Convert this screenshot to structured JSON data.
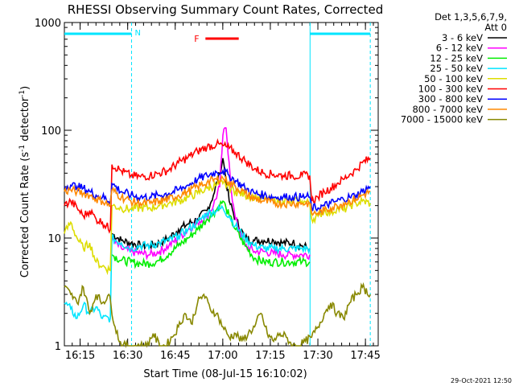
{
  "chart_data": {
    "type": "line",
    "title": "RHESSI Observing Summary Count Rates, Corrected",
    "xlabel": "Start Time (08-Jul-15 16:10:02)",
    "ylabel_main": "Corrected Count Rate (s",
    "ylabel_sup1": "-1",
    "ylabel_mid": " detector",
    "ylabel_sup2": "-1",
    "ylabel_end": ")",
    "yscale": "log",
    "ylim": [
      1,
      1000
    ],
    "xlim_minutes": [
      0,
      99
    ],
    "y_ticks": [
      {
        "value": 1,
        "label": "1"
      },
      {
        "value": 10,
        "label": "10"
      },
      {
        "value": 100,
        "label": "100"
      },
      {
        "value": 1000,
        "label": "1000"
      }
    ],
    "x_ticks": [
      {
        "minute": 4.97,
        "label": "16:15"
      },
      {
        "minute": 19.97,
        "label": "16:30"
      },
      {
        "minute": 34.97,
        "label": "16:45"
      },
      {
        "minute": 49.97,
        "label": "17:00"
      },
      {
        "minute": 64.97,
        "label": "17:15"
      },
      {
        "minute": 79.97,
        "label": "17:30"
      },
      {
        "minute": 94.97,
        "label": "17:45"
      }
    ],
    "legend_header": [
      "Det 1,3,5,6,7,9,",
      "Att 0"
    ],
    "legend_position": "right",
    "timestamp": "29-Oct-2021 12:50",
    "annotations": [
      {
        "label": "N",
        "color": "#00e5ff",
        "start_minute": 0,
        "end_minute": 21.2
      },
      {
        "label": "F",
        "color": "#ff0000",
        "start_minute": 44.5,
        "end_minute": 55.0
      }
    ],
    "night_markers_minutes": [
      21.2,
      77.5,
      96.5
    ],
    "series": [
      {
        "name": "3 - 6 keV",
        "color": "#000000",
        "x": [
          0,
          3,
          6,
          9,
          12,
          14.5,
          15,
          18,
          21,
          24,
          27,
          30,
          33,
          36,
          39,
          42,
          45,
          47,
          49,
          50,
          51,
          52,
          54,
          57,
          60,
          63,
          66,
          69,
          72,
          75,
          77.4
        ],
        "y": [
          null,
          null,
          null,
          null,
          null,
          null,
          11,
          9.5,
          9,
          8.5,
          8.5,
          9,
          10,
          12,
          13.5,
          15,
          18,
          25,
          40,
          55,
          35,
          22,
          15,
          10,
          9.5,
          9.5,
          9.5,
          9,
          9,
          8.5,
          8
        ]
      },
      {
        "name": "6 - 12 keV",
        "color": "#ff00ff",
        "x": [
          0,
          3,
          6,
          9,
          12,
          14.5,
          15,
          18,
          21,
          24,
          27,
          30,
          33,
          36,
          39,
          42,
          45,
          47,
          49,
          50,
          51,
          52,
          53,
          54,
          57,
          60,
          63,
          66,
          69,
          72,
          75,
          77.4
        ],
        "y": [
          null,
          null,
          null,
          null,
          null,
          null,
          9.5,
          8,
          7.5,
          7.2,
          7,
          7.5,
          8.5,
          10,
          12,
          14,
          16,
          20,
          30,
          90,
          105,
          50,
          22,
          15,
          8.5,
          7.5,
          7.5,
          7.2,
          7,
          7,
          7,
          7
        ]
      },
      {
        "name": "12 - 25 keV",
        "color": "#00ee00",
        "x": [
          0,
          3,
          6,
          9,
          12,
          14.5,
          15,
          18,
          21,
          24,
          27,
          30,
          33,
          36,
          39,
          42,
          45,
          47,
          49,
          50,
          51,
          52,
          54,
          57,
          60,
          63,
          66,
          69,
          72,
          75,
          77.4
        ],
        "y": [
          null,
          null,
          null,
          null,
          null,
          null,
          7,
          6.2,
          6,
          5.8,
          5.8,
          6.2,
          7.2,
          8.5,
          10,
          12,
          15,
          17,
          20,
          22,
          19,
          16,
          12,
          8.5,
          6.5,
          6,
          6,
          6,
          6,
          6,
          6
        ]
      },
      {
        "name": "25 - 50 keV",
        "color": "#00e5ff",
        "x": [
          0,
          2,
          4,
          6,
          8,
          10,
          12,
          14.5,
          15,
          18,
          21,
          24,
          27,
          30,
          33,
          36,
          39,
          42,
          45,
          48,
          50,
          52,
          54,
          57,
          60,
          63,
          66,
          69,
          72,
          75,
          77.4,
          78,
          82,
          86,
          90,
          94,
          96.5
        ],
        "y": [
          2.5,
          2.2,
          1.8,
          2.4,
          2,
          2.3,
          1.8,
          1.8,
          10,
          9,
          8,
          8.5,
          8.5,
          9,
          9.5,
          10.5,
          12,
          14,
          17,
          18,
          19,
          16,
          13,
          10,
          8.5,
          8,
          8,
          8,
          8,
          8,
          8,
          null,
          null,
          null,
          null,
          null,
          null
        ]
      },
      {
        "name": "50 - 100 keV",
        "color": "#dddd00",
        "x": [
          0,
          2,
          4,
          6,
          8,
          10,
          12,
          14.5,
          15,
          18,
          21,
          24,
          27,
          30,
          33,
          36,
          39,
          42,
          45,
          48,
          50,
          52,
          54,
          57,
          60,
          63,
          66,
          69,
          72,
          75,
          77.4,
          78,
          80,
          82,
          84,
          86,
          88,
          90,
          92,
          94,
          96.5
        ],
        "y": [
          11,
          14,
          10,
          8,
          9,
          6,
          5.5,
          5,
          20,
          19,
          18.5,
          19,
          19,
          20,
          21,
          22,
          24,
          26,
          29,
          31,
          32,
          30,
          27,
          25,
          24,
          23,
          22,
          22,
          22,
          22,
          21,
          15,
          16,
          18,
          17,
          19,
          18,
          20,
          21,
          22,
          21
        ]
      },
      {
        "name": "100 - 300 keV",
        "color": "#ff0000",
        "x": [
          0,
          2,
          4,
          6,
          8,
          10,
          12,
          14.5,
          15,
          18,
          21,
          24,
          27,
          30,
          33,
          36,
          39,
          42,
          45,
          48,
          50,
          52,
          54,
          57,
          60,
          63,
          66,
          69,
          72,
          75,
          77.4,
          78,
          80,
          82,
          84,
          86,
          88,
          90,
          92,
          94,
          96.5
        ],
        "y": [
          20,
          22,
          19,
          16,
          18,
          15,
          14,
          12,
          48,
          42,
          38,
          37,
          38,
          40,
          43,
          50,
          56,
          64,
          70,
          74,
          72,
          68,
          62,
          52,
          44,
          40,
          39,
          38,
          38,
          38,
          38,
          22,
          24,
          27,
          29,
          32,
          35,
          39,
          43,
          50,
          55
        ]
      },
      {
        "name": "300 - 800 keV",
        "color": "#0000ff",
        "x": [
          0,
          2,
          4,
          6,
          8,
          10,
          12,
          14.5,
          15,
          18,
          21,
          24,
          27,
          30,
          33,
          36,
          39,
          42,
          45,
          48,
          50,
          52,
          54,
          57,
          60,
          63,
          66,
          69,
          72,
          75,
          77.4,
          78,
          80,
          82,
          84,
          86,
          88,
          90,
          92,
          94,
          96.5
        ],
        "y": [
          30,
          31,
          30,
          29,
          27,
          25,
          24,
          22,
          32,
          27,
          25,
          24,
          24,
          25,
          26,
          28,
          31,
          35,
          38,
          41,
          42,
          38,
          34,
          29,
          26,
          25,
          24,
          24,
          24,
          24,
          24,
          19,
          19,
          20,
          21,
          22,
          23,
          24,
          25,
          27,
          30
        ]
      },
      {
        "name": "800 - 7000 keV",
        "color": "#ff8800",
        "x": [
          0,
          2,
          4,
          6,
          8,
          10,
          12,
          14.5,
          15,
          18,
          21,
          24,
          27,
          30,
          33,
          36,
          39,
          42,
          45,
          48,
          50,
          52,
          54,
          57,
          60,
          63,
          66,
          69,
          72,
          75,
          77.4,
          78,
          80,
          82,
          84,
          86,
          88,
          90,
          92,
          94,
          96.5
        ],
        "y": [
          27,
          28,
          27,
          26,
          25,
          23,
          22,
          20,
          28,
          24,
          22,
          21,
          21,
          22,
          23,
          25,
          27,
          30,
          33,
          35,
          36,
          33,
          30,
          26,
          23,
          22,
          21,
          21,
          21,
          21,
          21,
          17,
          17,
          18,
          19,
          20,
          21,
          22,
          23,
          25,
          27
        ]
      },
      {
        "name": "7000 - 15000 keV",
        "color": "#888800",
        "x": [
          0,
          2,
          4,
          6,
          8,
          10,
          12,
          14,
          16,
          18,
          20,
          22,
          24,
          26,
          28,
          30,
          32,
          34,
          36,
          38,
          40,
          42,
          44,
          46,
          48,
          50,
          52,
          54,
          56,
          58,
          60,
          62,
          64,
          66,
          68,
          70,
          72,
          74,
          76,
          78,
          80,
          82,
          84,
          86,
          88,
          90,
          92,
          94,
          96.5
        ],
        "y": [
          3.5,
          3,
          2.5,
          3.5,
          2,
          3,
          2.5,
          3,
          1.5,
          1,
          1,
          1,
          1,
          1,
          1.3,
          1,
          1,
          1.2,
          1.5,
          2,
          1.6,
          2.5,
          3,
          2.2,
          2,
          1.5,
          1.2,
          1.3,
          1.1,
          1.3,
          1.5,
          2,
          1.3,
          1.1,
          1.3,
          1.2,
          1,
          1,
          1.1,
          1.2,
          1.5,
          2,
          2.5,
          2,
          1.8,
          2.5,
          3,
          3.5,
          3
        ]
      }
    ]
  }
}
